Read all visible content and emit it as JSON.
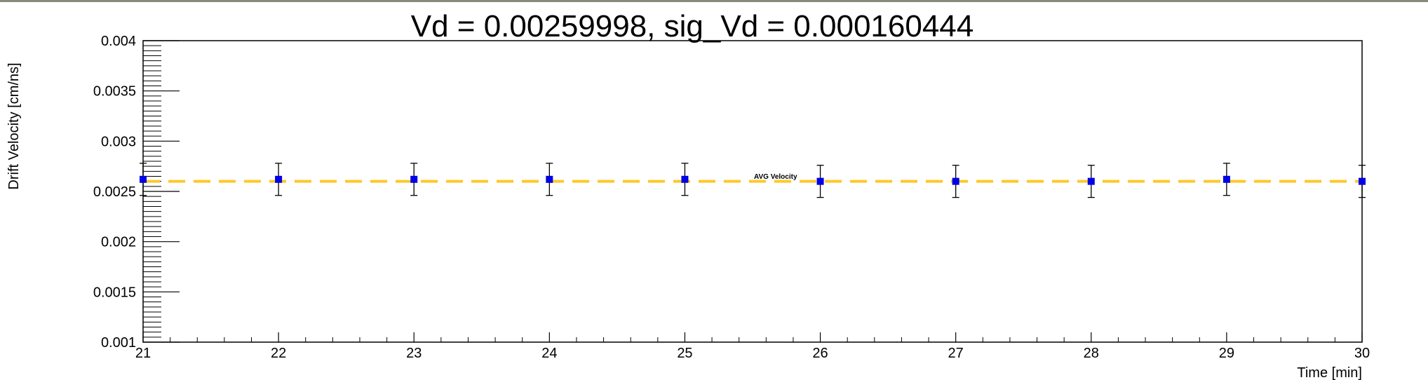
{
  "chart_data": {
    "type": "scatter",
    "title": "Vd = 0.00259998, sig_Vd = 0.000160444",
    "xlabel": "Time [min]",
    "ylabel": "Drift Velocity [cm/ns]",
    "xlim": [
      21,
      30
    ],
    "ylim": [
      0.001,
      0.004
    ],
    "x_tick_labels": [
      "21",
      "22",
      "23",
      "24",
      "25",
      "26",
      "27",
      "28",
      "29",
      "30"
    ],
    "y_tick_labels": [
      "0.001",
      "0.0015",
      "0.002",
      "0.0025",
      "0.003",
      "0.0035",
      "0.004"
    ],
    "grid": false,
    "series": [
      {
        "x": [
          21,
          22,
          23,
          24,
          25,
          26,
          27,
          28,
          29,
          30
        ],
        "y": [
          0.00262,
          0.00262,
          0.00262,
          0.00262,
          0.00262,
          0.0026,
          0.0026,
          0.0026,
          0.00262,
          0.0026
        ],
        "err": [
          0.00016,
          0.00016,
          0.00016,
          0.00016,
          0.00016,
          0.00016,
          0.00016,
          0.00016,
          0.00016,
          0.00016
        ],
        "color": "#0000e6"
      }
    ],
    "reference_line": {
      "label": "AVG Velocity",
      "y": 0.0026,
      "color": "#ffc82a",
      "style": "dashed"
    }
  }
}
